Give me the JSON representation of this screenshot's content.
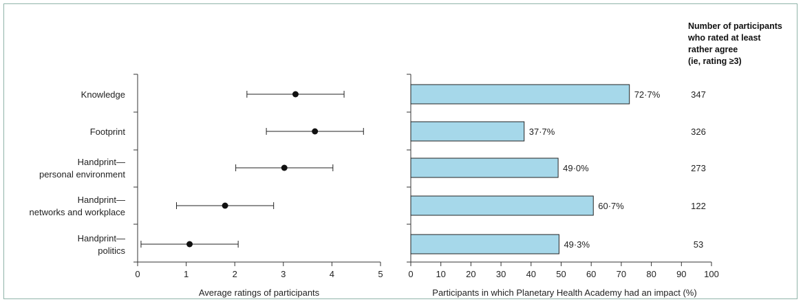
{
  "chart_data": [
    {
      "type": "scatter",
      "categories": [
        "Knowledge",
        "Footprint",
        "Handprint—\npersonal environment",
        "Handprint—\nnetworks and workplace",
        "Handprint—\npolitics"
      ],
      "values": [
        3.25,
        3.65,
        3.02,
        1.8,
        1.07
      ],
      "error_low": [
        2.25,
        2.65,
        2.02,
        0.8,
        0.07
      ],
      "error_high": [
        4.25,
        4.65,
        4.02,
        2.8,
        2.07
      ],
      "xlabel": "Average ratings of participants",
      "xlim": [
        0,
        5
      ],
      "xticks": [
        "0",
        "1",
        "2",
        "3",
        "4",
        "5"
      ]
    },
    {
      "type": "bar",
      "orientation": "horizontal",
      "categories": [
        "Knowledge",
        "Footprint",
        "Handprint—personal environment",
        "Handprint—networks and workplace",
        "Handprint—politics"
      ],
      "values": [
        72.7,
        37.7,
        49.0,
        60.7,
        49.3
      ],
      "value_labels": [
        "72·7%",
        "37·7%",
        "49·0%",
        "60·7%",
        "49·3%"
      ],
      "bar_color": "#a6d8ea",
      "xlabel": "Participants in which Planetary Health Academy had an impact (%)",
      "xlim": [
        0,
        100
      ],
      "xticks": [
        "0",
        "10",
        "20",
        "30",
        "40",
        "50",
        "60",
        "70",
        "80",
        "90",
        "100"
      ]
    }
  ],
  "count_column": {
    "header": [
      "Number of participants",
      "who rated at least",
      "rather agree",
      "(ie, rating ≥3)"
    ],
    "values": [
      "347",
      "326",
      "273",
      "122",
      "53"
    ]
  }
}
